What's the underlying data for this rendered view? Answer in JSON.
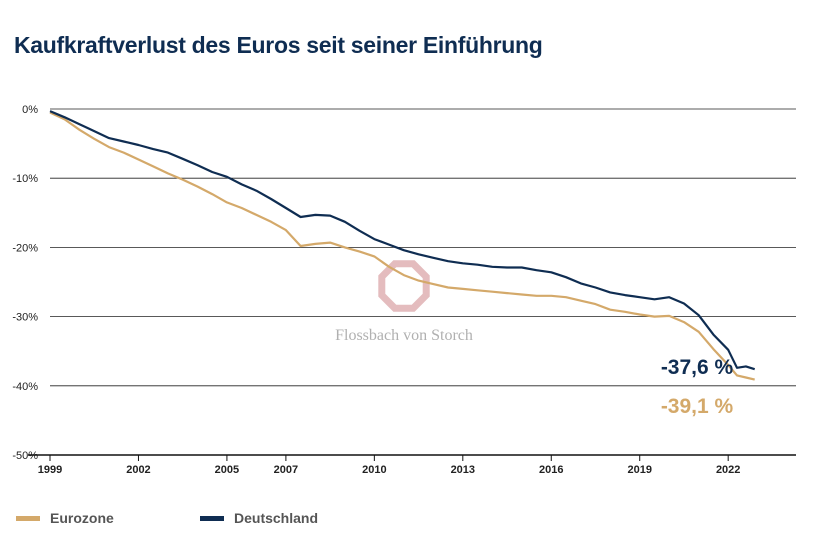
{
  "title": "Kaufkraftverlust des Euros seit seiner Einführung",
  "watermark": "Flossbach von Storch",
  "colors": {
    "eurozone": "#d4a96a",
    "deutschland": "#0f2d52",
    "grid": "#222222"
  },
  "chart_data": {
    "type": "line",
    "title": "Kaufkraftverlust des Euros seit seiner Einführung",
    "xlabel": "",
    "ylabel": "",
    "x_ticks": [
      "1999",
      "2002",
      "2005",
      "2007",
      "2010",
      "2013",
      "2016",
      "2019",
      "2022"
    ],
    "x_tick_values": [
      1999,
      2002,
      2005,
      2007,
      2010,
      2013,
      2016,
      2019,
      2022
    ],
    "y_ticks": [
      "0%",
      "-10%",
      "-20%",
      "-30%",
      "-40%",
      "-50%"
    ],
    "y_tick_values": [
      0,
      -10,
      -20,
      -30,
      -40,
      -50
    ],
    "xlim": [
      1999,
      2024.3
    ],
    "ylim": [
      -50,
      0
    ],
    "grid": true,
    "legend_position": "bottom-left",
    "series": [
      {
        "name": "Eurozone",
        "color": "#d4a96a",
        "end_label": "-39,1 %",
        "x": [
          1999,
          1999.5,
          2000,
          2000.5,
          2001,
          2001.5,
          2002,
          2002.5,
          2003,
          2003.5,
          2004,
          2004.5,
          2005,
          2005.5,
          2006,
          2006.5,
          2007,
          2007.5,
          2008,
          2008.5,
          2009,
          2009.5,
          2010,
          2010.5,
          2011,
          2011.5,
          2012,
          2012.5,
          2013,
          2013.5,
          2014,
          2014.5,
          2015,
          2015.5,
          2016,
          2016.5,
          2017,
          2017.5,
          2018,
          2018.5,
          2019,
          2019.5,
          2020,
          2020.5,
          2021,
          2021.5,
          2022,
          2022.3,
          2022.6,
          2022.9
        ],
        "y": [
          -0.5,
          -1.5,
          -3,
          -4.3,
          -5.5,
          -6.3,
          -7.3,
          -8.3,
          -9.3,
          -10.2,
          -11.2,
          -12.3,
          -13.5,
          -14.3,
          -15.3,
          -16.3,
          -17.5,
          -19.8,
          -19.5,
          -19.3,
          -20,
          -20.6,
          -21.3,
          -22.8,
          -24,
          -24.8,
          -25.3,
          -25.8,
          -26,
          -26.2,
          -26.4,
          -26.6,
          -26.8,
          -27,
          -27,
          -27.2,
          -27.7,
          -28.2,
          -29,
          -29.3,
          -29.7,
          -30,
          -29.9,
          -30.8,
          -32.2,
          -34.7,
          -37,
          -38.5,
          -38.8,
          -39.1
        ]
      },
      {
        "name": "Deutschland",
        "color": "#0f2d52",
        "end_label": "-37,6 %",
        "x": [
          1999,
          1999.5,
          2000,
          2000.5,
          2001,
          2001.5,
          2002,
          2002.5,
          2003,
          2003.5,
          2004,
          2004.5,
          2005,
          2005.5,
          2006,
          2006.5,
          2007,
          2007.5,
          2008,
          2008.5,
          2009,
          2009.5,
          2010,
          2010.5,
          2011,
          2011.5,
          2012,
          2012.5,
          2013,
          2013.5,
          2014,
          2014.5,
          2015,
          2015.5,
          2016,
          2016.5,
          2017,
          2017.5,
          2018,
          2018.5,
          2019,
          2019.5,
          2020,
          2020.5,
          2021,
          2021.5,
          2022,
          2022.3,
          2022.6,
          2022.9
        ],
        "y": [
          -0.3,
          -1.2,
          -2.2,
          -3.2,
          -4.2,
          -4.7,
          -5.2,
          -5.8,
          -6.3,
          -7.2,
          -8.1,
          -9.1,
          -9.8,
          -10.9,
          -11.8,
          -13,
          -14.3,
          -15.6,
          -15.3,
          -15.4,
          -16.3,
          -17.6,
          -18.8,
          -19.6,
          -20.4,
          -21,
          -21.5,
          -22,
          -22.3,
          -22.5,
          -22.8,
          -22.9,
          -22.9,
          -23.3,
          -23.6,
          -24.3,
          -25.2,
          -25.8,
          -26.5,
          -26.9,
          -27.2,
          -27.5,
          -27.2,
          -28.1,
          -29.8,
          -32.6,
          -34.8,
          -37.4,
          -37.2,
          -37.6
        ]
      }
    ]
  }
}
